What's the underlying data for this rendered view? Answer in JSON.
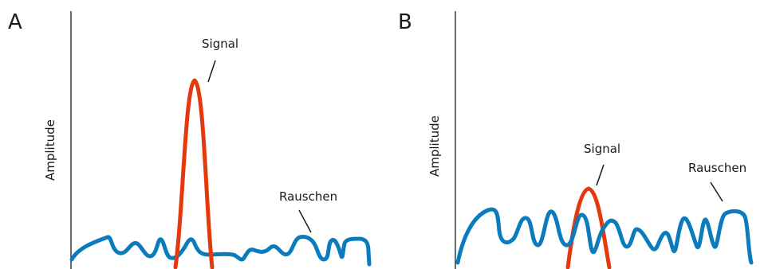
{
  "colors": {
    "noise": "#0a7bbd",
    "signal": "#e4380d",
    "text": "#1a1a1a"
  },
  "panelA": {
    "letter": "A",
    "ylabel": "Amplitude",
    "signal_label": "Signal",
    "noise_label": "Rauschen"
  },
  "panelB": {
    "letter": "B",
    "ylabel": "Amplitude",
    "signal_label": "Signal",
    "noise_label": "Rauschen"
  }
}
